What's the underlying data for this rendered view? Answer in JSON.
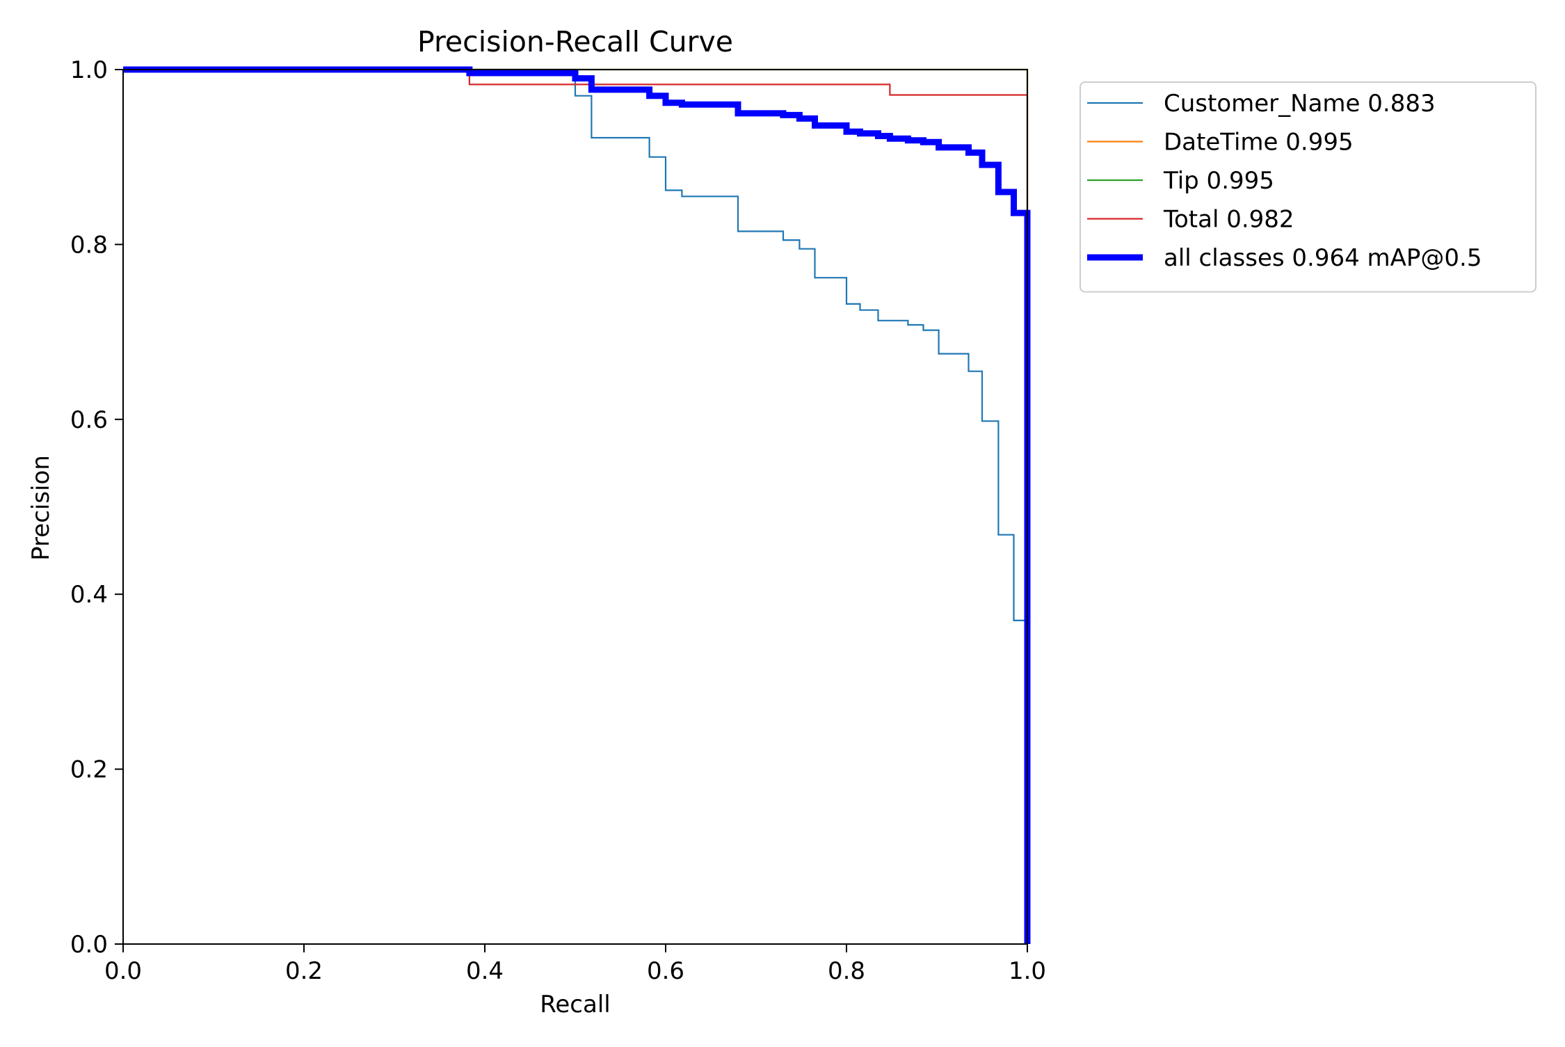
{
  "chart_data": {
    "type": "line",
    "title": "Precision-Recall Curve",
    "xlabel": "Recall",
    "ylabel": "Precision",
    "xlim": [
      0.0,
      1.0
    ],
    "ylim": [
      0.0,
      1.0
    ],
    "xticks": [
      "0.0",
      "0.2",
      "0.4",
      "0.6",
      "0.8",
      "1.0"
    ],
    "yticks": [
      "0.0",
      "0.2",
      "0.4",
      "0.6",
      "0.8",
      "1.0"
    ],
    "grid": false,
    "legend_position": "outside upper right",
    "series": [
      {
        "name": "Customer_Name 0.883",
        "color": "#1f77b4",
        "width": "thin",
        "x": [
          0.0,
          0.5,
          0.5,
          0.518,
          0.518,
          0.582,
          0.582,
          0.6,
          0.6,
          0.618,
          0.618,
          0.68,
          0.68,
          0.73,
          0.73,
          0.748,
          0.748,
          0.765,
          0.765,
          0.8,
          0.8,
          0.815,
          0.815,
          0.835,
          0.835,
          0.868,
          0.868,
          0.885,
          0.885,
          0.902,
          0.902,
          0.935,
          0.935,
          0.95,
          0.95,
          0.968,
          0.968,
          0.985,
          0.985,
          1.0,
          1.0
        ],
        "y": [
          1.0,
          1.0,
          0.97,
          0.97,
          0.922,
          0.922,
          0.9,
          0.9,
          0.862,
          0.862,
          0.855,
          0.855,
          0.815,
          0.815,
          0.805,
          0.805,
          0.795,
          0.795,
          0.762,
          0.762,
          0.732,
          0.732,
          0.725,
          0.725,
          0.713,
          0.713,
          0.708,
          0.708,
          0.702,
          0.702,
          0.675,
          0.675,
          0.655,
          0.655,
          0.598,
          0.598,
          0.468,
          0.468,
          0.37,
          0.37,
          0.0
        ]
      },
      {
        "name": "DateTime 0.995",
        "color": "#ff7f0e",
        "width": "thin",
        "x": [
          0.0,
          1.0,
          1.0
        ],
        "y": [
          1.0,
          1.0,
          0.0
        ]
      },
      {
        "name": "Tip 0.995",
        "color": "#2ca02c",
        "width": "thin",
        "x": [
          0.0,
          1.0,
          1.0
        ],
        "y": [
          1.0,
          1.0,
          0.0
        ]
      },
      {
        "name": "Total 0.982",
        "color": "#d62728",
        "width": "thin",
        "x": [
          0.0,
          0.383,
          0.383,
          0.848,
          0.848,
          1.0,
          1.0
        ],
        "y": [
          1.0,
          1.0,
          0.983,
          0.983,
          0.971,
          0.971,
          0.0
        ]
      },
      {
        "name": "all classes 0.964 mAP@0.5",
        "color": "#0000ff",
        "width": "thick",
        "x": [
          0.0,
          0.383,
          0.383,
          0.5,
          0.5,
          0.518,
          0.518,
          0.582,
          0.582,
          0.6,
          0.6,
          0.618,
          0.618,
          0.68,
          0.68,
          0.73,
          0.73,
          0.748,
          0.748,
          0.765,
          0.765,
          0.8,
          0.8,
          0.815,
          0.815,
          0.835,
          0.835,
          0.848,
          0.848,
          0.868,
          0.868,
          0.885,
          0.885,
          0.902,
          0.902,
          0.935,
          0.935,
          0.95,
          0.95,
          0.968,
          0.968,
          0.985,
          0.985,
          1.0,
          1.0
        ],
        "y": [
          1.0,
          1.0,
          0.996,
          0.996,
          0.99,
          0.99,
          0.977,
          0.977,
          0.97,
          0.97,
          0.962,
          0.962,
          0.96,
          0.96,
          0.95,
          0.95,
          0.948,
          0.948,
          0.944,
          0.944,
          0.936,
          0.936,
          0.929,
          0.929,
          0.927,
          0.927,
          0.924,
          0.924,
          0.921,
          0.921,
          0.919,
          0.919,
          0.917,
          0.917,
          0.911,
          0.911,
          0.905,
          0.905,
          0.891,
          0.891,
          0.86,
          0.86,
          0.836,
          0.836,
          0.0
        ]
      }
    ]
  }
}
